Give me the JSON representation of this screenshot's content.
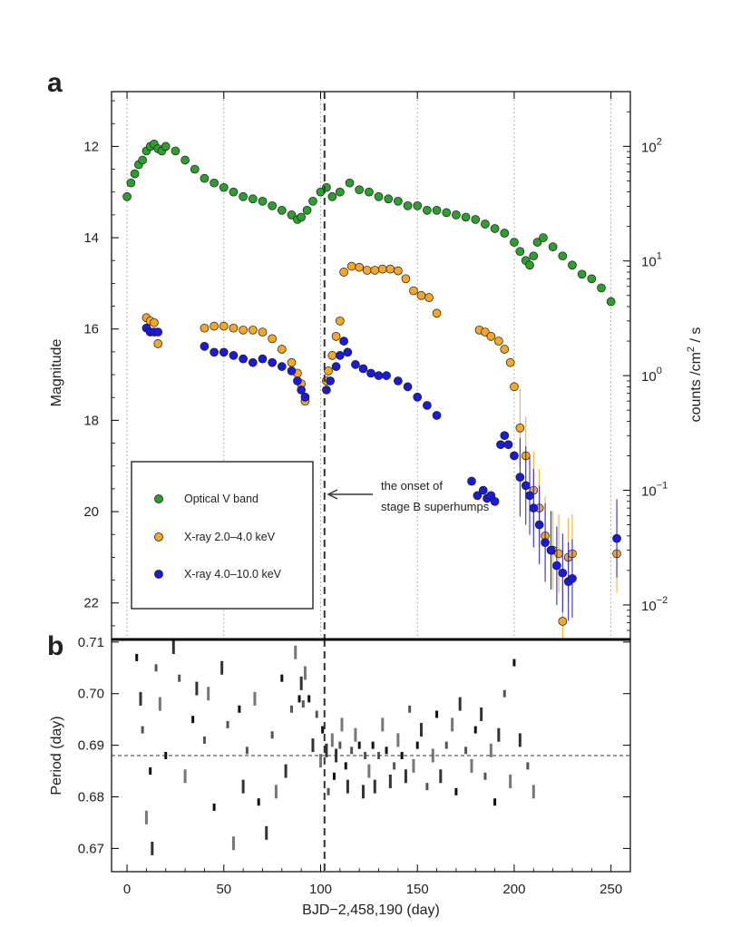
{
  "chart_data": [
    {
      "panel_label": "a",
      "type": "scatter",
      "xlabel": "",
      "ylabel": "Magnitude",
      "y2label": "counts /cm",
      "y2label_sup": "2",
      "y2label_tail": " / s",
      "xlim": [
        -8,
        260
      ],
      "ylim": [
        22.8,
        10.8
      ],
      "y_inverted": true,
      "y_ticks": [
        12,
        14,
        16,
        18,
        20,
        22
      ],
      "y2_scale": "log",
      "y2lim": [
        0.005,
        300
      ],
      "y2_ticks": [
        {
          "base": "10",
          "exp": "2",
          "value": 100
        },
        {
          "base": "10",
          "exp": "1",
          "value": 10
        },
        {
          "base": "10",
          "exp": "0",
          "value": 1
        },
        {
          "base": "10",
          "exp": "−1",
          "value": 0.1
        },
        {
          "base": "10",
          "exp": "−2",
          "value": 0.01
        }
      ],
      "x_dotted_guides": [
        0,
        50,
        100,
        150,
        200,
        250
      ],
      "dashed_vline_x": 102,
      "annotation": {
        "lines": [
          "the onset of",
          "stage B superhumps"
        ],
        "arrow_to_x": 102,
        "arrow_y": 19.75
      },
      "legend": {
        "placement": "lower-left",
        "entries": [
          {
            "label": "Optical V band",
            "color": "#2ca02c"
          },
          {
            "label": "X-ray 2.0–4.0 keV",
            "color": "#f5a623"
          },
          {
            "label": "X-ray 4.0–10.0 keV",
            "color": "#1a1adc"
          }
        ]
      },
      "series": [
        {
          "name": "Optical V band",
          "axis": "magnitude",
          "color": "#2ca02c",
          "x": [
            0,
            2,
            4,
            6,
            8,
            10,
            12,
            14,
            16,
            18,
            20,
            25,
            30,
            35,
            40,
            45,
            50,
            55,
            60,
            65,
            70,
            75,
            80,
            85,
            88,
            90,
            93,
            96,
            100,
            103,
            106,
            110,
            115,
            120,
            125,
            130,
            135,
            140,
            145,
            150,
            155,
            160,
            165,
            170,
            175,
            180,
            185,
            190,
            195,
            200,
            203,
            206,
            208,
            210,
            212,
            215,
            220,
            225,
            230,
            235,
            240,
            245,
            250
          ],
          "y": [
            13.1,
            12.8,
            12.6,
            12.4,
            12.3,
            12.1,
            12.0,
            11.95,
            12.05,
            12.1,
            12.0,
            12.1,
            12.3,
            12.5,
            12.7,
            12.8,
            12.9,
            13.0,
            13.1,
            13.15,
            13.2,
            13.3,
            13.4,
            13.5,
            13.6,
            13.55,
            13.4,
            13.2,
            13.0,
            12.9,
            13.1,
            13.0,
            12.8,
            12.95,
            13.0,
            13.1,
            13.15,
            13.2,
            13.3,
            13.3,
            13.4,
            13.4,
            13.45,
            13.5,
            13.55,
            13.6,
            13.7,
            13.8,
            13.9,
            14.1,
            14.3,
            14.5,
            14.6,
            14.4,
            14.1,
            14.0,
            14.2,
            14.4,
            14.6,
            14.8,
            14.9,
            15.1,
            15.4
          ]
        },
        {
          "name": "X-ray 2.0–4.0 keV",
          "axis": "counts",
          "color": "#f5a623",
          "x": [
            10,
            12,
            14,
            16,
            40,
            45,
            50,
            55,
            60,
            65,
            70,
            75,
            80,
            85,
            88,
            90,
            92,
            103,
            104,
            106,
            108,
            110,
            112,
            116,
            120,
            124,
            128,
            132,
            136,
            140,
            144,
            148,
            152,
            156,
            160,
            182,
            185,
            188,
            192,
            195,
            198,
            200,
            203,
            206,
            210,
            213,
            216,
            220,
            223,
            225,
            228,
            230,
            253
          ],
          "y": [
            3.2,
            3.0,
            2.9,
            1.9,
            2.6,
            2.7,
            2.7,
            2.6,
            2.5,
            2.5,
            2.4,
            2.1,
            1.7,
            1.3,
            1.05,
            0.85,
            0.6,
            0.9,
            1.1,
            1.5,
            2.2,
            3.0,
            8.0,
            9.0,
            8.8,
            8.3,
            8.3,
            8.5,
            8.5,
            8.2,
            7.0,
            5.5,
            5.0,
            4.8,
            3.5,
            2.5,
            2.4,
            2.2,
            2.0,
            1.7,
            1.3,
            0.8,
            0.35,
            0.2,
            0.1,
            0.07,
            0.04,
            0.03,
            0.028,
            0.0072,
            0.026,
            0.028,
            0.028
          ]
        },
        {
          "name": "X-ray 4.0–10.0 keV",
          "axis": "counts",
          "color": "#1a1adc",
          "x": [
            10,
            12,
            14,
            16,
            40,
            45,
            50,
            55,
            60,
            65,
            70,
            75,
            80,
            85,
            88,
            90,
            92,
            103,
            105,
            108,
            110,
            112,
            114,
            118,
            122,
            126,
            130,
            134,
            140,
            145,
            150,
            155,
            160,
            178,
            181,
            184,
            186,
            188,
            190,
            193,
            195,
            197,
            200,
            203,
            206,
            208,
            210,
            213,
            216,
            219,
            222,
            225,
            228,
            230,
            253
          ],
          "y": [
            2.6,
            2.4,
            2.4,
            2.4,
            1.8,
            1.6,
            1.6,
            1.5,
            1.4,
            1.3,
            1.4,
            1.3,
            1.2,
            1.1,
            0.9,
            0.75,
            0.65,
            0.75,
            0.9,
            1.2,
            1.5,
            2.0,
            1.6,
            1.25,
            1.15,
            1.05,
            1.0,
            1.0,
            0.9,
            0.8,
            0.65,
            0.55,
            0.45,
            0.12,
            0.09,
            0.1,
            0.085,
            0.09,
            0.08,
            0.25,
            0.3,
            0.25,
            0.2,
            0.13,
            0.11,
            0.09,
            0.07,
            0.05,
            0.035,
            0.03,
            0.022,
            0.019,
            0.016,
            0.017,
            0.038
          ]
        }
      ]
    },
    {
      "panel_label": "b",
      "type": "heatmap",
      "xlabel": "BJD−2,458,190 (day)",
      "ylabel": "Period (day)",
      "xlim": [
        -8,
        260
      ],
      "ylim": [
        0.6655,
        0.7105
      ],
      "x_ticks": [
        0,
        50,
        100,
        150,
        200,
        250
      ],
      "y_ticks": [
        0.67,
        0.68,
        0.69,
        0.7,
        0.71
      ],
      "y_tick_labels": [
        "0.67",
        "0.68",
        "0.69",
        "0.70",
        "0.71"
      ],
      "dashed_vline_x": 102,
      "dashed_hline_period": 0.688,
      "marks": [
        [
          5,
          0.707
        ],
        [
          7,
          0.699
        ],
        [
          8,
          0.693
        ],
        [
          10,
          0.676
        ],
        [
          12,
          0.685
        ],
        [
          13,
          0.67
        ],
        [
          15,
          0.705
        ],
        [
          17,
          0.698
        ],
        [
          20,
          0.688
        ],
        [
          24,
          0.709
        ],
        [
          27,
          0.703
        ],
        [
          30,
          0.684
        ],
        [
          34,
          0.695
        ],
        [
          36,
          0.701
        ],
        [
          40,
          0.691
        ],
        [
          42,
          0.7
        ],
        [
          45,
          0.678
        ],
        [
          49,
          0.705
        ],
        [
          52,
          0.694
        ],
        [
          55,
          0.671
        ],
        [
          58,
          0.697
        ],
        [
          60,
          0.682
        ],
        [
          62,
          0.689
        ],
        [
          66,
          0.699
        ],
        [
          68,
          0.679
        ],
        [
          72,
          0.673
        ],
        [
          75,
          0.692
        ],
        [
          77,
          0.681
        ],
        [
          80,
          0.703
        ],
        [
          82,
          0.685
        ],
        [
          85,
          0.697
        ],
        [
          87,
          0.708
        ],
        [
          89,
          0.699
        ],
        [
          90,
          0.702
        ],
        [
          91,
          0.698
        ],
        [
          92,
          0.704
        ],
        [
          94,
          0.699
        ],
        [
          96,
          0.69
        ],
        [
          98,
          0.696
        ],
        [
          100,
          0.687
        ],
        [
          101,
          0.693
        ],
        [
          103,
          0.689
        ],
        [
          104,
          0.681
        ],
        [
          106,
          0.691
        ],
        [
          107,
          0.684
        ],
        [
          108,
          0.688
        ],
        [
          110,
          0.69
        ],
        [
          111,
          0.694
        ],
        [
          113,
          0.686
        ],
        [
          114,
          0.682
        ],
        [
          116,
          0.689
        ],
        [
          118,
          0.692
        ],
        [
          120,
          0.69
        ],
        [
          122,
          0.681
        ],
        [
          123,
          0.688
        ],
        [
          125,
          0.685
        ],
        [
          127,
          0.69
        ],
        [
          128,
          0.682
        ],
        [
          130,
          0.688
        ],
        [
          132,
          0.694
        ],
        [
          134,
          0.689
        ],
        [
          136,
          0.683
        ],
        [
          138,
          0.686
        ],
        [
          140,
          0.691
        ],
        [
          142,
          0.688
        ],
        [
          144,
          0.684
        ],
        [
          146,
          0.697
        ],
        [
          148,
          0.686
        ],
        [
          150,
          0.69
        ],
        [
          152,
          0.693
        ],
        [
          155,
          0.682
        ],
        [
          158,
          0.688
        ],
        [
          160,
          0.696
        ],
        [
          162,
          0.684
        ],
        [
          165,
          0.69
        ],
        [
          168,
          0.694
        ],
        [
          170,
          0.681
        ],
        [
          172,
          0.698
        ],
        [
          175,
          0.689
        ],
        [
          178,
          0.686
        ],
        [
          180,
          0.693
        ],
        [
          183,
          0.696
        ],
        [
          185,
          0.684
        ],
        [
          188,
          0.689
        ],
        [
          190,
          0.679
        ],
        [
          192,
          0.692
        ],
        [
          195,
          0.7
        ],
        [
          198,
          0.683
        ],
        [
          200,
          0.706
        ],
        [
          203,
          0.691
        ],
        [
          207,
          0.686
        ],
        [
          210,
          0.681
        ]
      ]
    }
  ]
}
